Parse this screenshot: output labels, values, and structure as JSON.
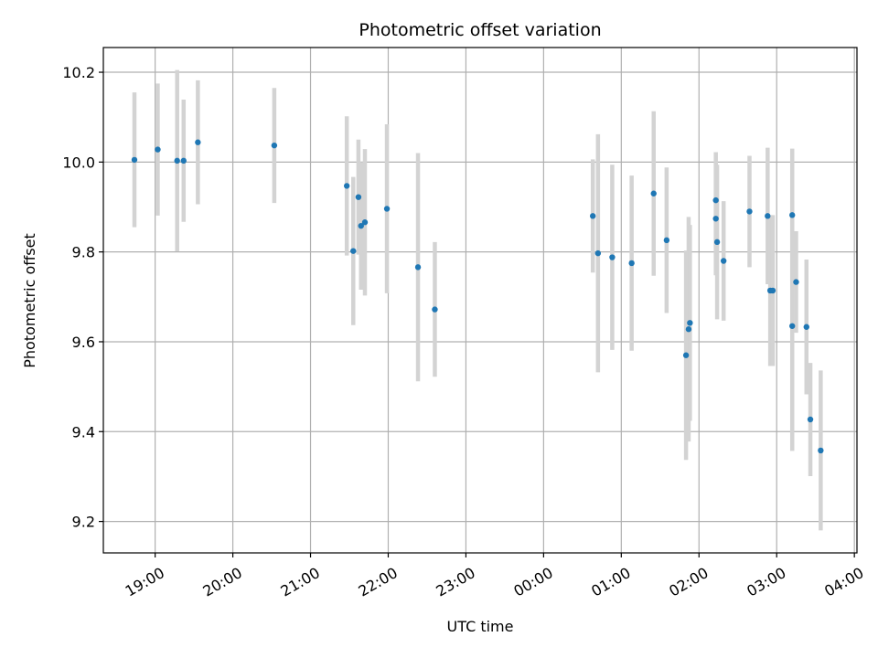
{
  "chart_data": {
    "type": "scatter",
    "title": "Photometric offset variation",
    "xlabel": "UTC time",
    "ylabel": "Photometric offset",
    "x_ticks": [
      "19:00",
      "20:00",
      "21:00",
      "22:00",
      "23:00",
      "00:00",
      "01:00",
      "02:00",
      "03:00",
      "04:00"
    ],
    "x_range": [
      "18:20",
      "04:02"
    ],
    "y_ticks": [
      "9.2",
      "9.4",
      "9.6",
      "9.8",
      "10.0",
      "10.2"
    ],
    "ylim": [
      9.13,
      10.255
    ],
    "grid": true,
    "colors": {
      "marker": "#1f77b4",
      "errorbar": "#d3d3d3"
    },
    "points": [
      {
        "t": "18:44",
        "y": 10.005,
        "err": 0.15
      },
      {
        "t": "19:02",
        "y": 10.028,
        "err": 0.147
      },
      {
        "t": "19:17",
        "y": 10.003,
        "err": 0.202
      },
      {
        "t": "19:22",
        "y": 10.003,
        "err": 0.136
      },
      {
        "t": "19:33",
        "y": 10.044,
        "err": 0.138
      },
      {
        "t": "20:32",
        "y": 10.037,
        "err": 0.128
      },
      {
        "t": "21:28",
        "y": 9.947,
        "err": 0.155
      },
      {
        "t": "21:33",
        "y": 9.802,
        "err": 0.165
      },
      {
        "t": "21:37",
        "y": 9.922,
        "err": 0.128
      },
      {
        "t": "21:39",
        "y": 9.858,
        "err": 0.142
      },
      {
        "t": "21:42",
        "y": 9.866,
        "err": 0.163
      },
      {
        "t": "21:59",
        "y": 9.896,
        "err": 0.188
      },
      {
        "t": "22:23",
        "y": 9.766,
        "err": 0.254
      },
      {
        "t": "22:36",
        "y": 9.672,
        "err": 0.15
      },
      {
        "t": "00:38",
        "y": 9.88,
        "err": 0.126
      },
      {
        "t": "00:42",
        "y": 9.797,
        "err": 0.265
      },
      {
        "t": "00:53",
        "y": 9.788,
        "err": 0.206
      },
      {
        "t": "01:08",
        "y": 9.775,
        "err": 0.195
      },
      {
        "t": "01:25",
        "y": 9.93,
        "err": 0.183
      },
      {
        "t": "01:35",
        "y": 9.826,
        "err": 0.162
      },
      {
        "t": "01:50",
        "y": 9.57,
        "err": 0.233
      },
      {
        "t": "01:52",
        "y": 9.628,
        "err": 0.25
      },
      {
        "t": "01:53",
        "y": 9.642,
        "err": 0.218
      },
      {
        "t": "02:13",
        "y": 9.915,
        "err": 0.107
      },
      {
        "t": "02:13",
        "y": 9.874,
        "err": 0.126
      },
      {
        "t": "02:14",
        "y": 9.822,
        "err": 0.172
      },
      {
        "t": "02:19",
        "y": 9.78,
        "err": 0.133
      },
      {
        "t": "02:39",
        "y": 9.89,
        "err": 0.124
      },
      {
        "t": "02:53",
        "y": 9.88,
        "err": 0.152
      },
      {
        "t": "02:55",
        "y": 9.714,
        "err": 0.168
      },
      {
        "t": "02:57",
        "y": 9.714,
        "err": 0.168
      },
      {
        "t": "03:12",
        "y": 9.882,
        "err": 0.148
      },
      {
        "t": "03:12",
        "y": 9.635,
        "err": 0.278
      },
      {
        "t": "03:15",
        "y": 9.733,
        "err": 0.113
      },
      {
        "t": "03:23",
        "y": 9.633,
        "err": 0.15
      },
      {
        "t": "03:26",
        "y": 9.427,
        "err": 0.126
      },
      {
        "t": "03:34",
        "y": 9.358,
        "err": 0.178
      }
    ]
  }
}
